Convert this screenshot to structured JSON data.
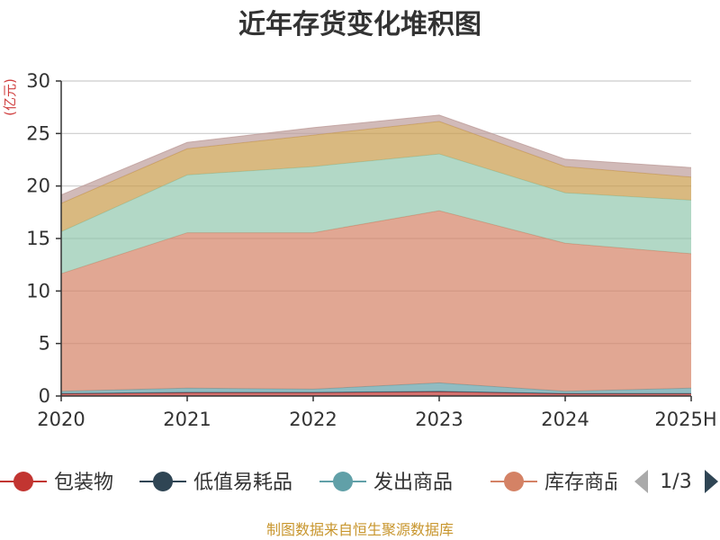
{
  "chart_data": {
    "type": "area",
    "title": "近年存货变化堆积图",
    "ylabel": "(亿元)",
    "categories": [
      "2020",
      "2021",
      "2022",
      "2023",
      "2024",
      "2025H"
    ],
    "ylim": [
      0,
      30
    ],
    "yticks": [
      "0",
      "5",
      "10",
      "15",
      "20",
      "25",
      "30"
    ],
    "stacked": true,
    "grid": true,
    "legend_position": "bottom",
    "series": [
      {
        "name": "包装物",
        "color": "#c23531",
        "values": [
          0.2,
          0.3,
          0.3,
          0.4,
          0.2,
          0.2
        ]
      },
      {
        "name": "低值易耗品",
        "color": "#2f4554",
        "values": [
          0.05,
          0.05,
          0.05,
          0.05,
          0.05,
          0.05
        ]
      },
      {
        "name": "发出商品",
        "color": "#61a0a8",
        "values": [
          0.2,
          0.4,
          0.3,
          0.8,
          0.2,
          0.5
        ]
      },
      {
        "name": "库存商品",
        "color": "#d48265",
        "values": [
          11.2,
          14.8,
          14.9,
          16.4,
          14.1,
          12.8
        ]
      },
      {
        "color": "#91c7ae",
        "values": [
          4.0,
          5.5,
          6.3,
          5.4,
          4.8,
          5.1
        ]
      },
      {
        "color": "#c99b4a",
        "values": [
          2.7,
          2.5,
          3.0,
          3.1,
          2.5,
          2.2
        ]
      },
      {
        "color": "#bd9c9a",
        "values": [
          0.8,
          0.6,
          0.7,
          0.6,
          0.7,
          0.9
        ]
      }
    ],
    "legend_visible": [
      "包装物",
      "低值易耗品",
      "发出商品",
      "库存商品"
    ]
  },
  "legend_pager": "1/3",
  "source_note": "制图数据来自恒生聚源数据库"
}
